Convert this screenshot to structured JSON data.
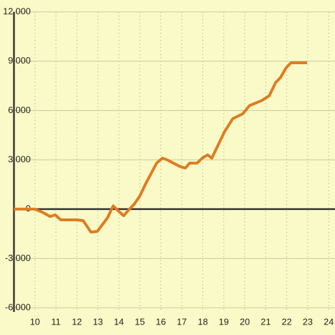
{
  "chart_data": {
    "type": "line",
    "x": [
      9.0,
      10.0,
      10.37,
      10.73,
      10.97,
      11.23,
      11.97,
      12.3,
      12.67,
      12.97,
      13.3,
      13.47,
      13.73,
      13.97,
      14.23,
      14.5,
      14.73,
      15.0,
      15.3,
      15.8,
      16.07,
      16.3,
      16.9,
      17.17,
      17.37,
      17.73,
      17.97,
      18.23,
      18.43,
      19.03,
      19.43,
      19.9,
      20.23,
      20.8,
      21.17,
      21.47,
      21.7,
      21.97,
      22.2,
      22.97
    ],
    "series": [
      {
        "color": "#e07b20",
        "values": [
          0,
          0,
          -200,
          -450,
          -350,
          -650,
          -650,
          -700,
          -1400,
          -1350,
          -800,
          -500,
          200,
          -100,
          -400,
          0,
          300,
          800,
          1600,
          2800,
          3100,
          3000,
          2600,
          2500,
          2800,
          2800,
          3100,
          3300,
          3100,
          4700,
          5500,
          5800,
          6300,
          6600,
          6900,
          7700,
          8000,
          8600,
          8900,
          8900
        ]
      }
    ],
    "xlim": [
      9,
      24.3
    ],
    "xticks": [
      10,
      11,
      12,
      13,
      14,
      15,
      16,
      17,
      18,
      19,
      20,
      21,
      22,
      23,
      24
    ],
    "ylim": [
      -6000,
      12000
    ],
    "yticks": [
      {
        "value": -6000,
        "label": "-6,000"
      },
      {
        "value": -3000,
        "label": "-3,000"
      },
      0,
      {
        "value": 3000,
        "label": "3,000"
      },
      {
        "value": 6000,
        "label": "6,000"
      },
      {
        "value": 9000,
        "label": "9,000"
      },
      {
        "value": 12000,
        "label": "12,000"
      }
    ],
    "grid": true
  }
}
